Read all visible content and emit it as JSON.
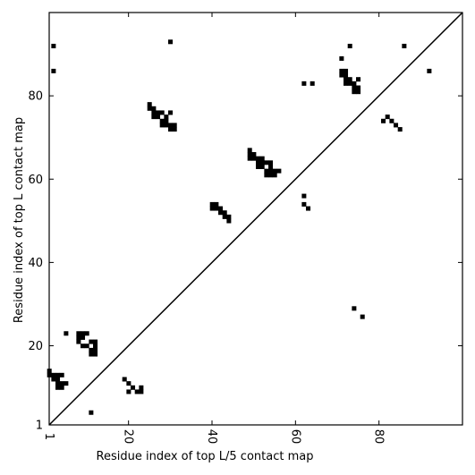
{
  "chart_data": {
    "type": "heatmap",
    "title": "",
    "xlabel": "Residue index of top L/5 contact map",
    "ylabel": "Residue index of top L contact map",
    "xlim": [
      1,
      100
    ],
    "ylim": [
      1,
      100
    ],
    "x_ticks": [
      1,
      20,
      40,
      60,
      80
    ],
    "y_ticks": [
      1,
      20,
      40,
      60,
      80
    ],
    "diagonal": true,
    "grid": false,
    "cell_color": "#000000",
    "background_color": "#ffffff",
    "cells": [
      [
        2,
        92
      ],
      [
        2,
        86
      ],
      [
        30,
        93
      ],
      [
        73,
        92
      ],
      [
        86,
        92
      ],
      [
        71,
        89
      ],
      [
        92,
        86
      ],
      [
        71,
        86
      ],
      [
        72,
        86
      ],
      [
        71,
        85
      ],
      [
        72,
        85
      ],
      [
        72,
        84
      ],
      [
        73,
        84
      ],
      [
        75,
        84
      ],
      [
        72,
        83
      ],
      [
        73,
        83
      ],
      [
        74,
        83
      ],
      [
        74,
        82
      ],
      [
        75,
        82
      ],
      [
        74,
        81
      ],
      [
        75,
        81
      ],
      [
        62,
        83
      ],
      [
        64,
        83
      ],
      [
        82,
        75
      ],
      [
        81,
        74
      ],
      [
        83,
        74
      ],
      [
        84,
        73
      ],
      [
        85,
        72
      ],
      [
        25,
        78
      ],
      [
        25,
        77
      ],
      [
        26,
        77
      ],
      [
        26,
        76
      ],
      [
        27,
        76
      ],
      [
        28,
        76
      ],
      [
        30,
        76
      ],
      [
        26,
        75
      ],
      [
        27,
        75
      ],
      [
        29,
        75
      ],
      [
        28,
        74
      ],
      [
        29,
        74
      ],
      [
        28,
        73
      ],
      [
        29,
        73
      ],
      [
        30,
        73
      ],
      [
        31,
        73
      ],
      [
        30,
        72
      ],
      [
        31,
        72
      ],
      [
        49,
        67
      ],
      [
        49,
        66
      ],
      [
        50,
        66
      ],
      [
        49,
        65
      ],
      [
        50,
        65
      ],
      [
        51,
        65
      ],
      [
        52,
        65
      ],
      [
        51,
        64
      ],
      [
        52,
        64
      ],
      [
        53,
        64
      ],
      [
        54,
        64
      ],
      [
        51,
        63
      ],
      [
        52,
        63
      ],
      [
        54,
        63
      ],
      [
        53,
        62
      ],
      [
        54,
        62
      ],
      [
        55,
        62
      ],
      [
        56,
        62
      ],
      [
        53,
        61
      ],
      [
        54,
        61
      ],
      [
        55,
        61
      ],
      [
        62,
        56
      ],
      [
        62,
        54
      ],
      [
        63,
        53
      ],
      [
        40,
        54
      ],
      [
        41,
        54
      ],
      [
        40,
        53
      ],
      [
        41,
        53
      ],
      [
        42,
        53
      ],
      [
        42,
        52
      ],
      [
        43,
        52
      ],
      [
        43,
        51
      ],
      [
        44,
        51
      ],
      [
        44,
        50
      ],
      [
        74,
        29
      ],
      [
        76,
        27
      ],
      [
        5,
        23
      ],
      [
        8,
        23
      ],
      [
        9,
        23
      ],
      [
        10,
        23
      ],
      [
        8,
        22
      ],
      [
        9,
        22
      ],
      [
        8,
        21
      ],
      [
        11,
        21
      ],
      [
        12,
        21
      ],
      [
        9,
        20
      ],
      [
        10,
        20
      ],
      [
        12,
        20
      ],
      [
        11,
        19
      ],
      [
        12,
        19
      ],
      [
        11,
        18
      ],
      [
        12,
        18
      ],
      [
        1,
        14
      ],
      [
        1,
        13
      ],
      [
        2,
        13
      ],
      [
        3,
        13
      ],
      [
        4,
        13
      ],
      [
        2,
        12
      ],
      [
        3,
        12
      ],
      [
        3,
        11
      ],
      [
        4,
        11
      ],
      [
        5,
        11
      ],
      [
        3,
        10
      ],
      [
        4,
        10
      ],
      [
        19,
        12
      ],
      [
        20,
        11
      ],
      [
        21,
        10
      ],
      [
        23,
        10
      ],
      [
        20,
        9
      ],
      [
        22,
        9
      ],
      [
        23,
        9
      ],
      [
        11,
        4
      ]
    ]
  }
}
